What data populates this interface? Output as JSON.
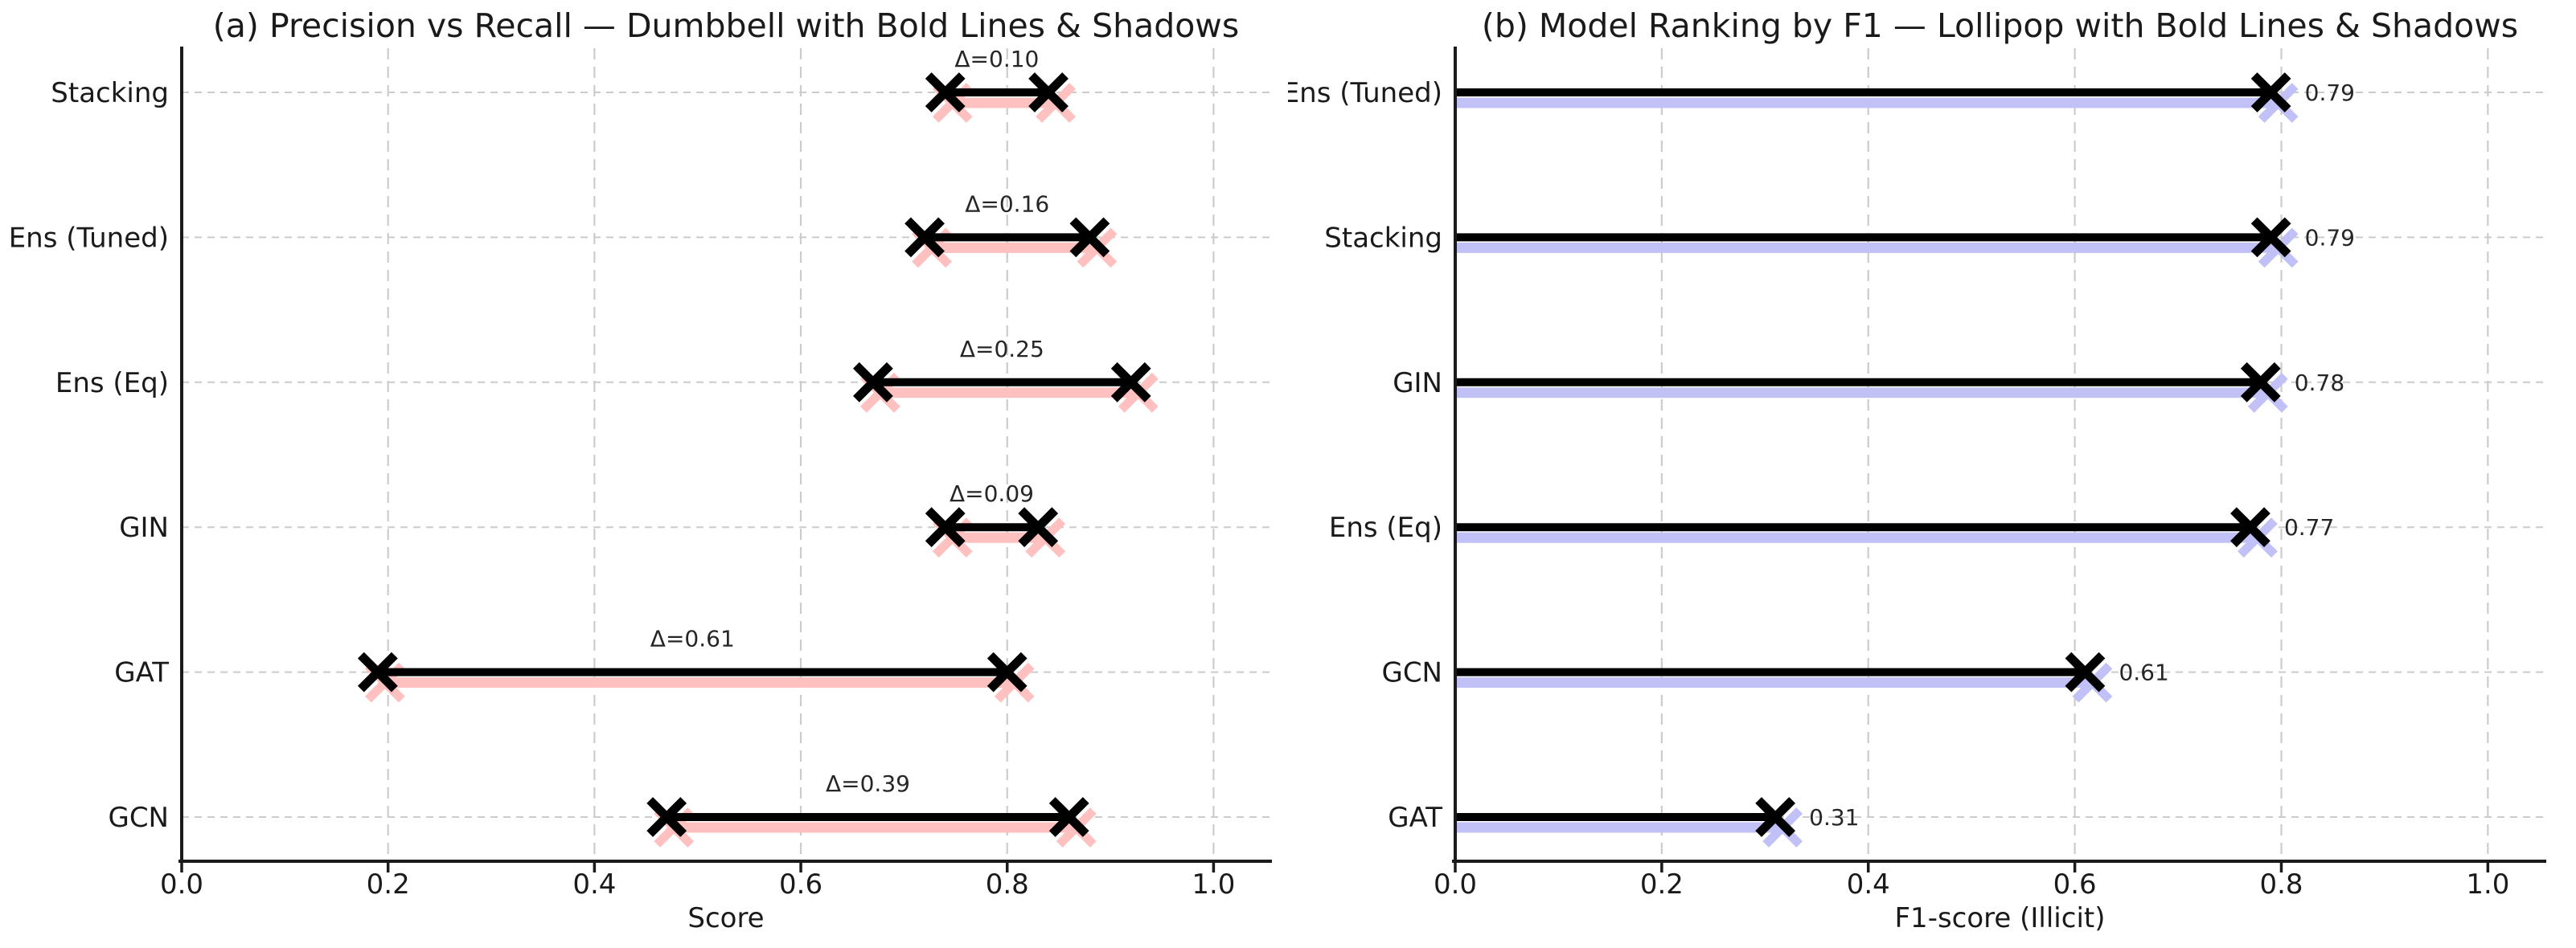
{
  "figure": {
    "background": "#ffffff",
    "text_color": "#1a1a1a",
    "grid_color": "#cccccc"
  },
  "chart_data": [
    {
      "type": "dumbbell",
      "title": "(a) Precision vs Recall — Dumbbell with Bold Lines & Shadows",
      "xlabel": "Score",
      "xlim": [
        0,
        1.055
      ],
      "xticks": [
        0.0,
        0.2,
        0.4,
        0.6,
        0.8,
        1.0
      ],
      "grid": true,
      "legend_position": "none",
      "categories": [
        "Stacking",
        "Ens (Tuned)",
        "Ens (Eq)",
        "GIN",
        "GAT",
        "GCN"
      ],
      "series": [
        {
          "name": "Recall",
          "values": [
            0.74,
            0.72,
            0.67,
            0.74,
            0.19,
            0.47
          ]
        },
        {
          "name": "Precision",
          "values": [
            0.84,
            0.88,
            0.92,
            0.83,
            0.8,
            0.86
          ]
        }
      ],
      "annotations": [
        "Δ=0.10",
        "Δ=0.16",
        "Δ=0.25",
        "Δ=0.09",
        "Δ=0.61",
        "Δ=0.39"
      ],
      "line_color": "#000000",
      "shadow_color": "#ffc0c0"
    },
    {
      "type": "lollipop",
      "title": "(b) Model Ranking by F1 — Lollipop with Bold Lines & Shadows",
      "xlabel": "F1-score (Illicit)",
      "xlim": [
        0,
        1.055
      ],
      "xticks": [
        0.0,
        0.2,
        0.4,
        0.6,
        0.8,
        1.0
      ],
      "grid": true,
      "legend_position": "none",
      "categories": [
        "Ens (Tuned)",
        "Stacking",
        "GIN",
        "Ens (Eq)",
        "GCN",
        "GAT"
      ],
      "values": [
        0.79,
        0.79,
        0.78,
        0.77,
        0.61,
        0.31
      ],
      "value_labels": [
        "0.79",
        "0.79",
        "0.78",
        "0.77",
        "0.61",
        "0.31"
      ],
      "line_color": "#000000",
      "shadow_color": "#c1c1f7"
    }
  ]
}
